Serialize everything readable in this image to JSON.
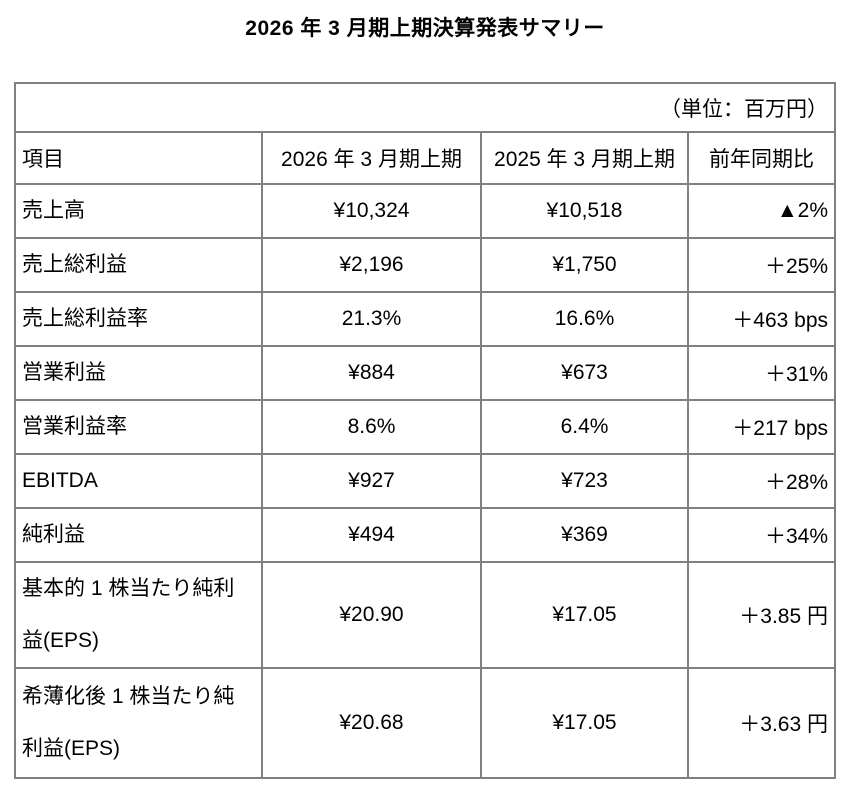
{
  "page": {
    "title": "2026 年 3 月期上期決算発表サマリー"
  },
  "table": {
    "unit_note": "（単位：百万円）",
    "columns": {
      "item": "項目",
      "current_period": "2026 年 3 月期上期",
      "prior_period": "2025 年 3 月期上期",
      "yoy": "前年同期比"
    },
    "rows": [
      {
        "label": "売上高",
        "current": "¥10,324",
        "prior": "¥10,518",
        "yoy": "▲2%"
      },
      {
        "label": "売上総利益",
        "current": "¥2,196",
        "prior": "¥1,750",
        "yoy": "＋25%"
      },
      {
        "label": "売上総利益率",
        "current": "21.3%",
        "prior": "16.6%",
        "yoy": "＋463 bps"
      },
      {
        "label": "営業利益",
        "current": "¥884",
        "prior": "¥673",
        "yoy": "＋31%"
      },
      {
        "label": "営業利益率",
        "current": "8.6%",
        "prior": "6.4%",
        "yoy": "＋217 bps"
      },
      {
        "label": "EBITDA",
        "current": "¥927",
        "prior": "¥723",
        "yoy": "＋28%"
      },
      {
        "label": "純利益",
        "current": "¥494",
        "prior": "¥369",
        "yoy": "＋34%"
      },
      {
        "label": "基本的 1 株当たり純利\n益(EPS)",
        "current": "¥20.90",
        "prior": "¥17.05",
        "yoy": "＋3.85 円"
      },
      {
        "label": "希薄化後 1 株当たり純\n利益(EPS)",
        "current": "¥20.68",
        "prior": "¥17.05",
        "yoy": "＋3.63 円"
      }
    ]
  }
}
